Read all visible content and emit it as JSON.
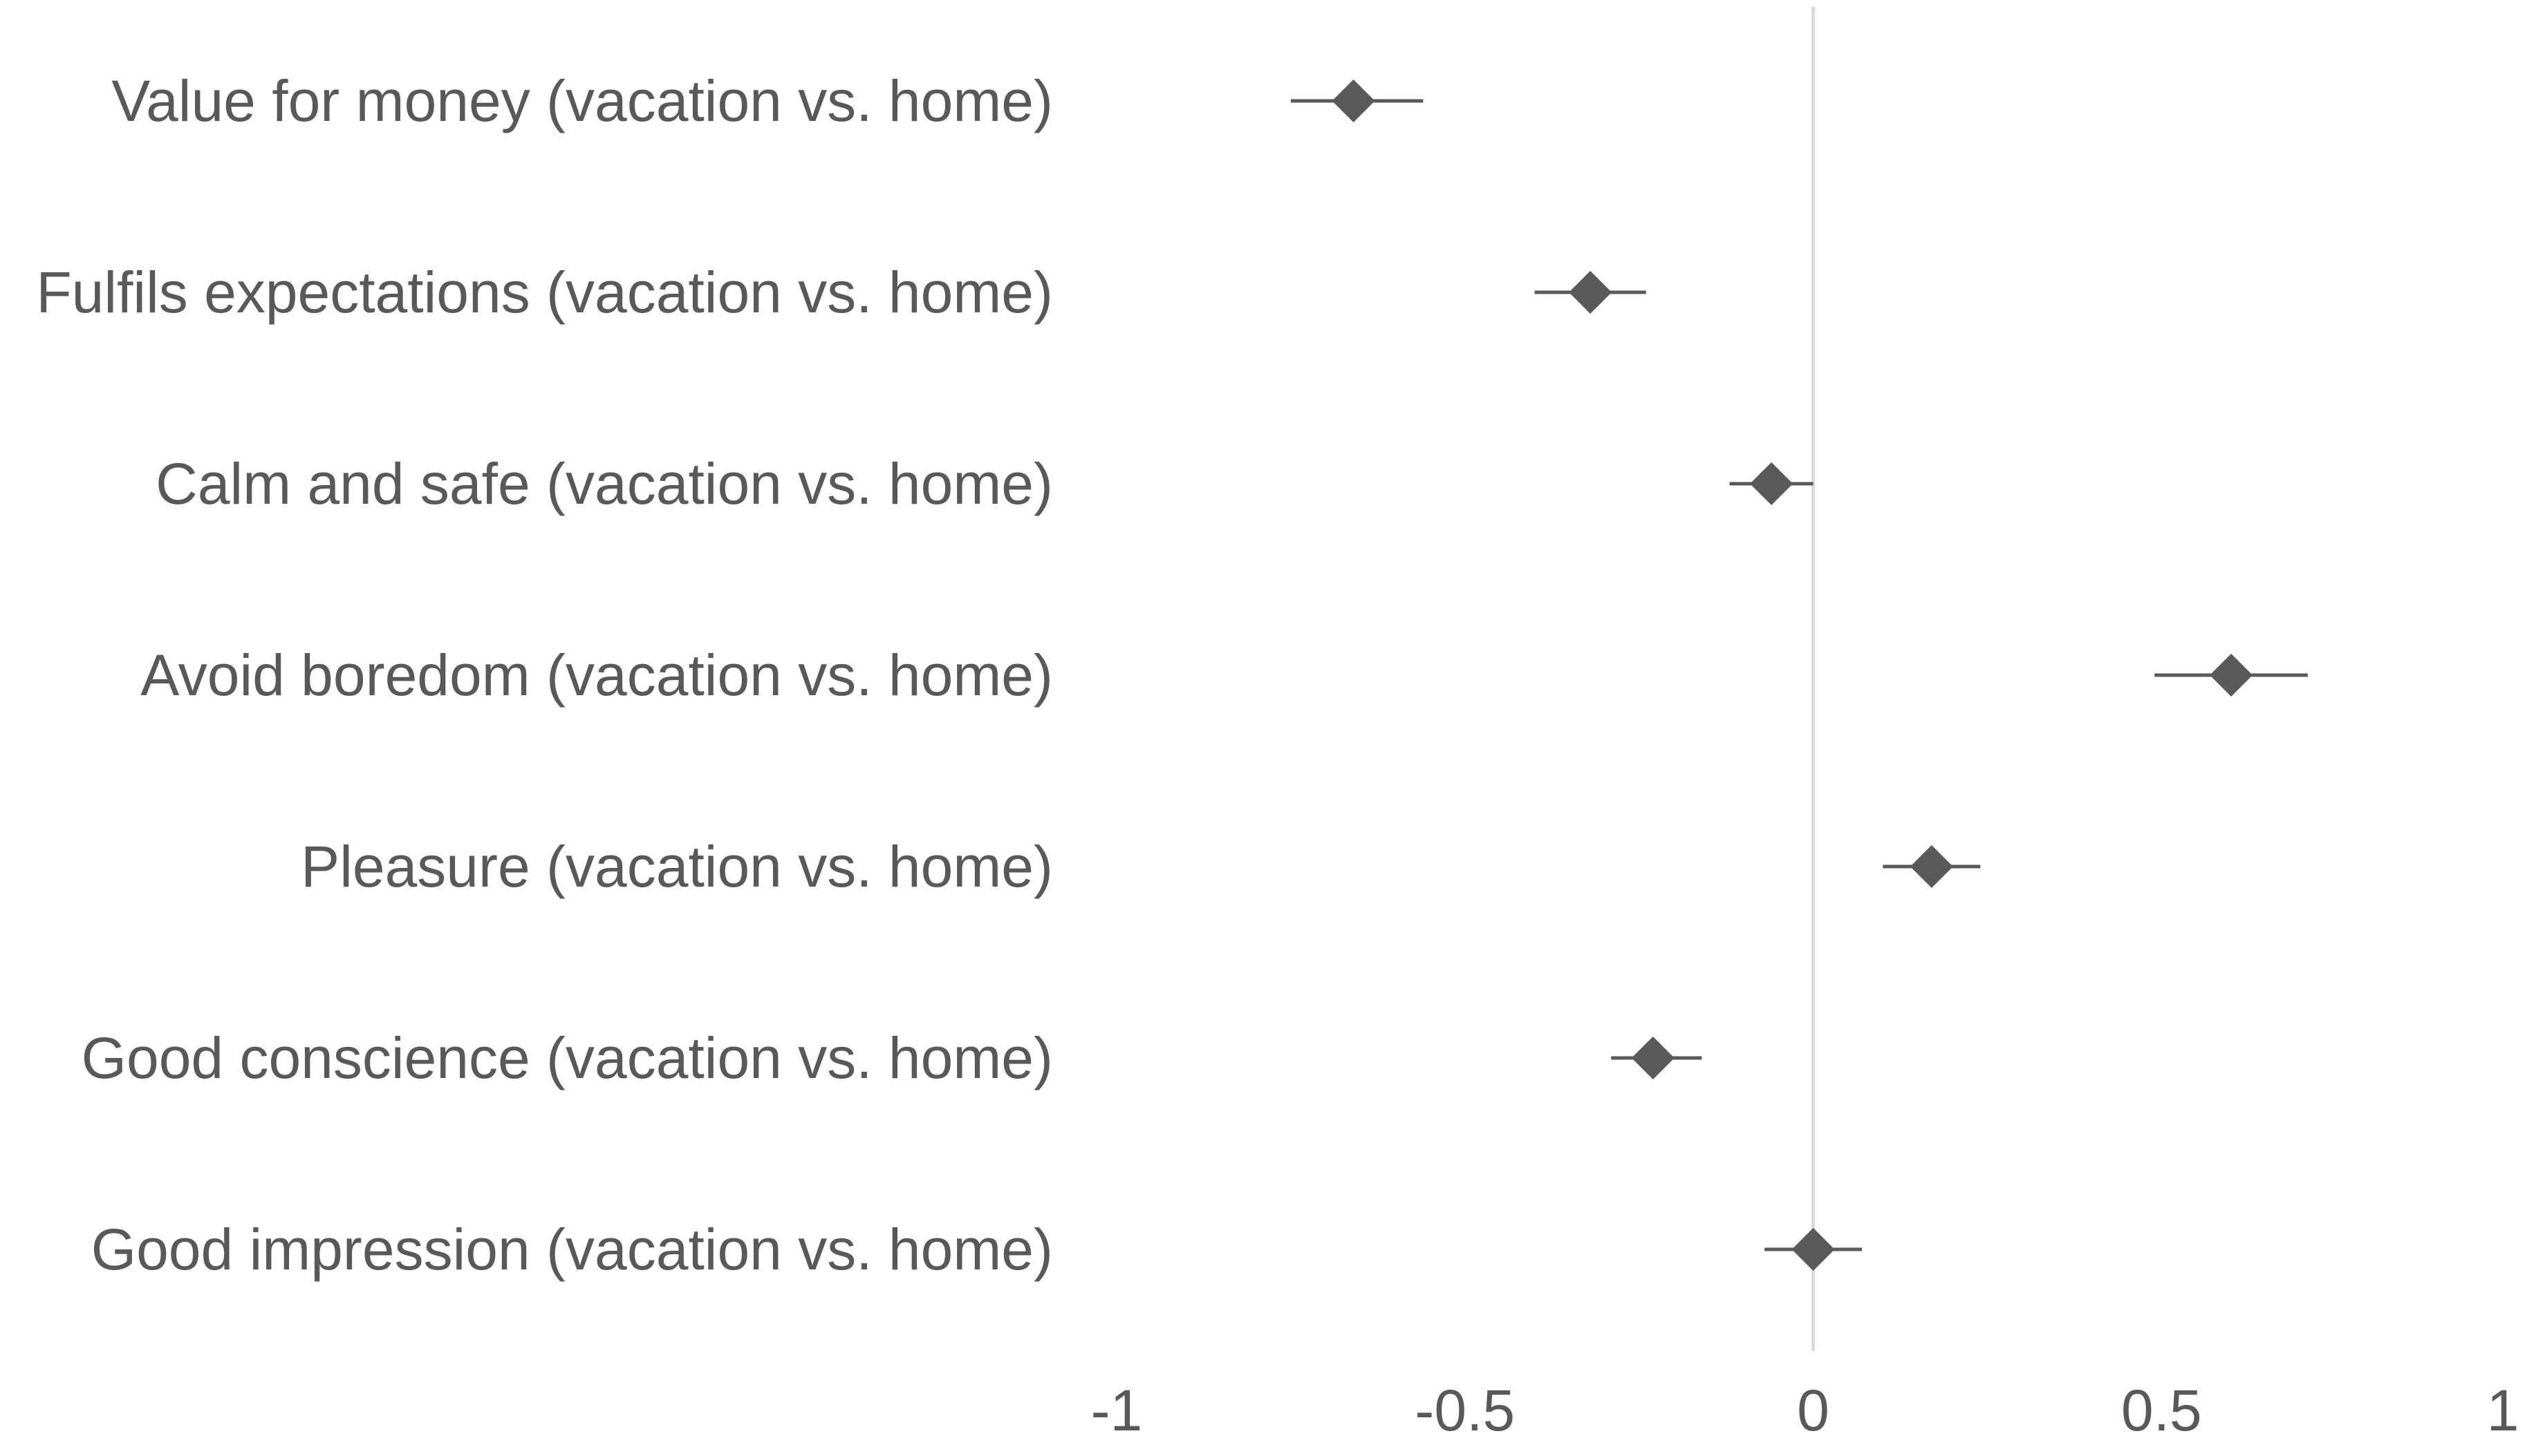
{
  "chart_data": {
    "type": "scatter",
    "orientation": "horizontal",
    "categories": [
      "Value for money (vacation vs. home)",
      "Fulfils expectations (vacation vs. home)",
      "Calm and safe (vacation vs. home)",
      "Avoid boredom (vacation vs. home)",
      "Pleasure (vacation vs. home)",
      "Good conscience (vacation vs. home)",
      "Good impression (vacation vs. home)"
    ],
    "series": [
      {
        "values": [
          -0.66,
          -0.32,
          -0.06,
          0.6,
          0.17,
          -0.23,
          0.0
        ],
        "ci_low": [
          -0.75,
          -0.4,
          -0.12,
          0.49,
          0.1,
          -0.29,
          -0.07
        ],
        "ci_high": [
          -0.56,
          -0.24,
          0.0,
          0.71,
          0.24,
          -0.16,
          0.07
        ]
      }
    ],
    "xlim": [
      -1,
      1
    ],
    "xticks": [
      -1,
      -0.5,
      0,
      0.5,
      1
    ],
    "xtick_labels": [
      "-1",
      "-0.5",
      "0",
      "0.5",
      "1"
    ],
    "reference_line_at": 0,
    "grid": false,
    "legend": "none",
    "title": "",
    "xlabel": "",
    "ylabel": "",
    "colors": {
      "marker": "#595959",
      "error_bar": "#595959",
      "reference_line": "#d9d9d9",
      "text": "#595959"
    },
    "marker_shape": "diamond"
  }
}
